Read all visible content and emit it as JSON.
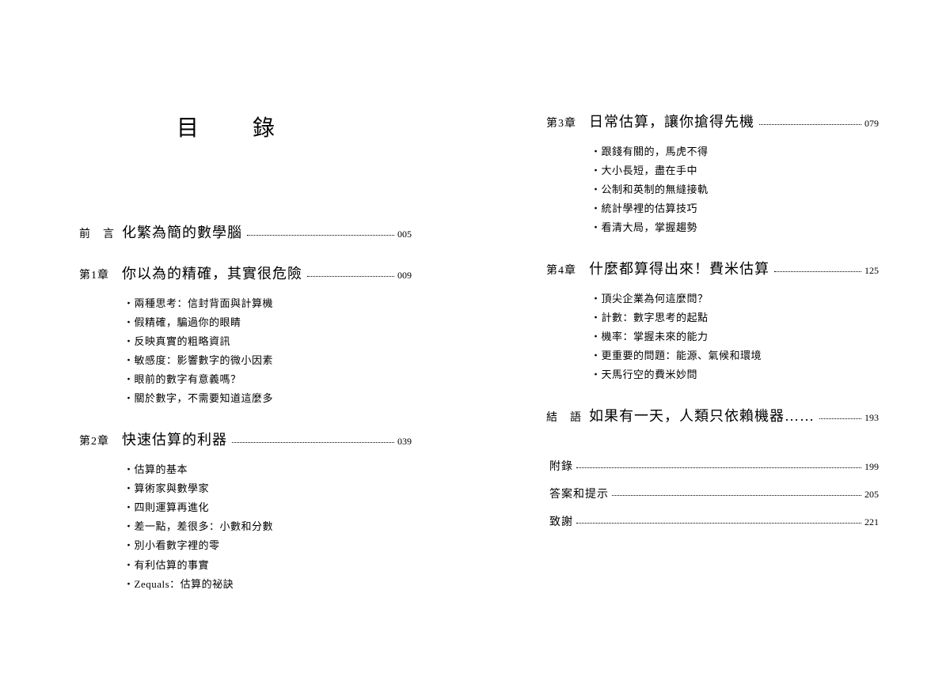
{
  "title": "目　錄",
  "left": {
    "sections": [
      {
        "label": "前　言",
        "title": "化繁為簡的數學腦",
        "page": "005",
        "items": []
      },
      {
        "label": "第1章",
        "title": "你以為的精確，其實很危險",
        "page": "009",
        "items": [
          "兩種思考：信封背面與計算機",
          "假精確，騙過你的眼睛",
          "反映真實的粗略資訊",
          "敏感度：影響數字的微小因素",
          "眼前的數字有意義嗎？",
          "關於數字，不需要知道這麼多"
        ]
      },
      {
        "label": "第2章",
        "title": "快速估算的利器",
        "page": "039",
        "items": [
          "估算的基本",
          "算術家與數學家",
          "四則運算再進化",
          "差一點，差很多：小數和分數",
          "別小看數字裡的零",
          "有利估算的事實",
          "Zequals：估算的祕訣"
        ]
      }
    ]
  },
  "right": {
    "sections": [
      {
        "label": "第3章",
        "title": "日常估算，讓你搶得先機",
        "page": "079",
        "items": [
          "跟錢有關的，馬虎不得",
          "大小長短，盡在手中",
          "公制和英制的無縫接軌",
          "統計學裡的估算技巧",
          "看清大局，掌握趨勢"
        ]
      },
      {
        "label": "第4章",
        "title": "什麼都算得出來！費米估算",
        "page": "125",
        "items": [
          "頂尖企業為何這麼問？",
          "計數：數字思考的起點",
          "機率：掌握未來的能力",
          "更重要的問題：能源、氣候和環境",
          "天馬行空的費米妙問"
        ]
      },
      {
        "label": "結　語",
        "title": "如果有一天，人類只依賴機器……",
        "page": "193",
        "items": []
      }
    ],
    "appendix": [
      {
        "label": "附錄",
        "page": "199"
      },
      {
        "label": "答案和提示",
        "page": "205"
      },
      {
        "label": "致謝",
        "page": "221"
      }
    ]
  }
}
